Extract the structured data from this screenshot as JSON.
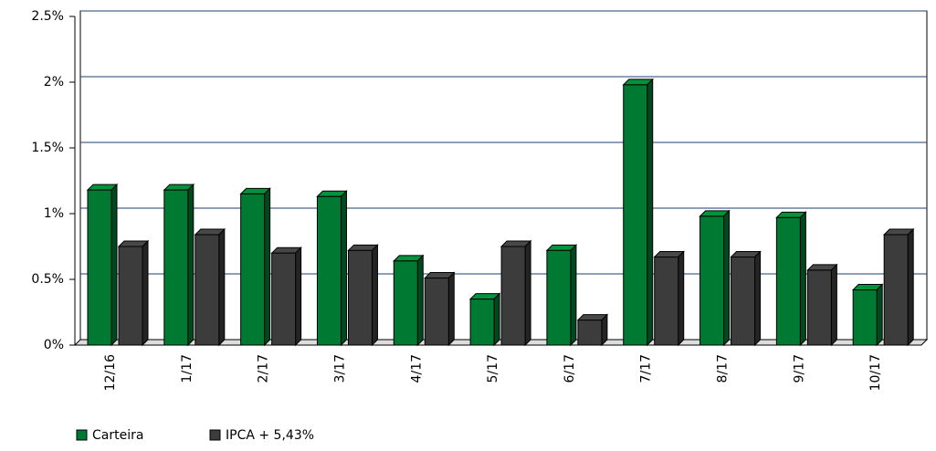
{
  "chart_data": {
    "type": "bar",
    "categories": [
      "12/16",
      "1/17",
      "2/17",
      "3/17",
      "4/17",
      "5/17",
      "6/17",
      "7/17",
      "8/17",
      "9/17",
      "10/17"
    ],
    "series": [
      {
        "name": "Carteira",
        "color": "#007a33",
        "values": [
          1.18,
          1.18,
          1.15,
          1.13,
          0.64,
          0.35,
          0.72,
          1.98,
          0.98,
          0.97,
          0.42
        ]
      },
      {
        "name": "IPCA + 5,43%",
        "color": "#3c3c3c",
        "values": [
          0.75,
          0.84,
          0.7,
          0.72,
          0.51,
          0.75,
          0.19,
          0.67,
          0.67,
          0.57,
          0.84
        ]
      }
    ],
    "ylim": [
      0,
      2.5
    ],
    "yticks": [
      {
        "value": 0,
        "label": "0%"
      },
      {
        "value": 0.5,
        "label": "0.5%"
      },
      {
        "value": 1,
        "label": "1%"
      },
      {
        "value": 1.5,
        "label": "1.5%"
      },
      {
        "value": 2,
        "label": "2%"
      },
      {
        "value": 2.5,
        "label": "2.5%"
      }
    ],
    "grid": true
  }
}
